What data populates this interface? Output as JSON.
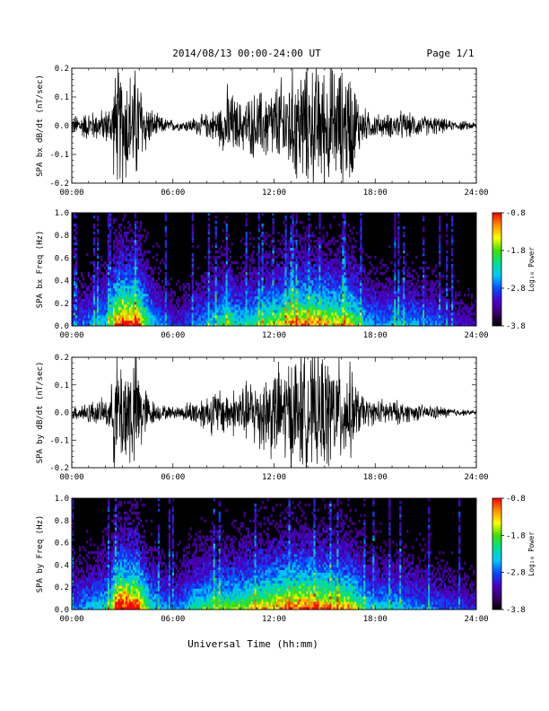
{
  "header": {
    "date_label": "2014/08/13  00:00-24:00 UT",
    "page_label": "Page 1/1"
  },
  "footer": {
    "xlabel": "Universal Time (hh:mm)"
  },
  "colors": {
    "trace": "#000000",
    "background": "#ffffff",
    "colormap": [
      "#000000",
      "#3a006a",
      "#4a00c8",
      "#0050ff",
      "#00c8ff",
      "#00e090",
      "#40e000",
      "#ffff00",
      "#ff9000",
      "#ff0000"
    ]
  },
  "chart_data": [
    {
      "type": "line",
      "panel": "bx-waveform",
      "ylabel": "SPA bx dB/dt (nT/sec)",
      "x_ticklabels": [
        "00:00",
        "06:00",
        "12:00",
        "18:00",
        "24:00"
      ],
      "y_ticklabels": [
        "0.2",
        "0.1",
        "0.0",
        "-0.1",
        "-0.2"
      ],
      "xlim": [
        0,
        24
      ],
      "ylim": [
        -0.2,
        0.2
      ],
      "x_unit": "hours UT",
      "envelope": {
        "x": [
          0,
          0.5,
          1.0,
          1.5,
          2.0,
          2.3,
          2.55,
          2.8,
          3.2,
          3.6,
          3.9,
          4.2,
          4.6,
          5.0,
          5.5,
          6.0,
          6.5,
          7.0,
          7.5,
          8.0,
          8.5,
          9.0,
          9.3,
          9.6,
          10.0,
          10.5,
          11.0,
          11.5,
          12.0,
          12.5,
          13.0,
          13.5,
          14.0,
          14.5,
          15.0,
          15.5,
          16.0,
          16.5,
          17.0,
          17.5,
          18.0,
          18.5,
          19.0,
          19.5,
          20.0,
          20.5,
          21.0,
          21.5,
          22.0,
          22.5,
          23.0,
          23.5,
          24.0
        ],
        "amplitude": [
          0.04,
          0.05,
          0.06,
          0.06,
          0.07,
          0.09,
          0.22,
          0.25,
          0.25,
          0.22,
          0.25,
          0.15,
          0.08,
          0.05,
          0.03,
          0.025,
          0.02,
          0.03,
          0.04,
          0.05,
          0.07,
          0.1,
          0.18,
          0.12,
          0.1,
          0.12,
          0.14,
          0.15,
          0.16,
          0.2,
          0.22,
          0.25,
          0.25,
          0.25,
          0.25,
          0.25,
          0.23,
          0.25,
          0.12,
          0.06,
          0.05,
          0.045,
          0.05,
          0.06,
          0.05,
          0.045,
          0.04,
          0.04,
          0.03,
          0.02,
          0.02,
          0.018,
          0.015
        ]
      }
    },
    {
      "type": "heatmap",
      "panel": "bx-spectrogram",
      "ylabel": "SPA bx Freq (Hz)",
      "colorbar_label": "Log₁₀ Power",
      "colorbar_ticklabels": [
        "-0.8",
        "-1.8",
        "-2.8",
        "-3.8"
      ],
      "colorbar_range": [
        -3.8,
        -0.8
      ],
      "x_ticklabels": [
        "00:00",
        "06:00",
        "12:00",
        "18:00",
        "24:00"
      ],
      "y_ticklabels": [
        "1.0",
        "0.8",
        "0.6",
        "0.4",
        "0.2",
        "0.0"
      ],
      "xlim": [
        0,
        24
      ],
      "ylim": [
        0,
        1.0
      ],
      "activity": {
        "x": [
          0,
          0.5,
          1.0,
          1.5,
          2.0,
          2.3,
          2.55,
          2.8,
          3.2,
          3.6,
          3.9,
          4.2,
          4.6,
          5.0,
          5.5,
          6.0,
          6.5,
          7.0,
          7.5,
          8.0,
          8.5,
          9.0,
          9.3,
          9.6,
          10.0,
          10.5,
          11.0,
          11.5,
          12.0,
          12.5,
          13.0,
          13.5,
          14.0,
          14.5,
          15.0,
          15.5,
          16.0,
          16.5,
          17.0,
          17.5,
          18.0,
          18.5,
          19.0,
          19.5,
          20.0,
          20.5,
          21.0,
          21.5,
          22.0,
          22.5,
          23.0,
          23.5,
          24.0
        ],
        "level": [
          0.25,
          0.3,
          0.35,
          0.4,
          0.45,
          0.5,
          0.85,
          0.95,
          1.0,
          0.9,
          0.95,
          0.7,
          0.5,
          0.4,
          0.3,
          0.25,
          0.22,
          0.3,
          0.35,
          0.4,
          0.45,
          0.55,
          0.6,
          0.5,
          0.45,
          0.5,
          0.55,
          0.6,
          0.62,
          0.7,
          0.75,
          0.8,
          0.8,
          0.78,
          0.75,
          0.72,
          0.7,
          0.7,
          0.55,
          0.4,
          0.38,
          0.36,
          0.38,
          0.4,
          0.38,
          0.36,
          0.34,
          0.32,
          0.28,
          0.24,
          0.22,
          0.2,
          0.18
        ]
      }
    },
    {
      "type": "line",
      "panel": "by-waveform",
      "ylabel": "SPA by dB/dt (nT/sec)",
      "x_ticklabels": [
        "00:00",
        "06:00",
        "12:00",
        "18:00",
        "24:00"
      ],
      "y_ticklabels": [
        "0.2",
        "0.1",
        "0.0",
        "-0.1",
        "-0.2"
      ],
      "xlim": [
        0,
        24
      ],
      "ylim": [
        -0.2,
        0.2
      ],
      "x_unit": "hours UT",
      "envelope": {
        "x": [
          0,
          0.5,
          1.0,
          1.5,
          2.0,
          2.3,
          2.55,
          2.8,
          3.2,
          3.6,
          3.9,
          4.2,
          4.6,
          5.0,
          5.5,
          6.0,
          6.5,
          7.0,
          7.5,
          8.0,
          8.5,
          9.0,
          9.3,
          9.6,
          10.0,
          10.5,
          11.0,
          11.5,
          12.0,
          12.5,
          13.0,
          13.5,
          14.0,
          14.5,
          15.0,
          15.5,
          16.0,
          16.5,
          17.0,
          17.5,
          18.0,
          18.5,
          19.0,
          19.5,
          20.0,
          20.5,
          21.0,
          21.5,
          22.0,
          22.5,
          23.0,
          23.5,
          24.0
        ],
        "amplitude": [
          0.03,
          0.04,
          0.05,
          0.05,
          0.06,
          0.08,
          0.25,
          0.25,
          0.25,
          0.25,
          0.25,
          0.14,
          0.07,
          0.04,
          0.03,
          0.025,
          0.03,
          0.05,
          0.06,
          0.08,
          0.1,
          0.1,
          0.09,
          0.1,
          0.12,
          0.13,
          0.16,
          0.18,
          0.2,
          0.21,
          0.25,
          0.25,
          0.25,
          0.25,
          0.25,
          0.24,
          0.22,
          0.2,
          0.1,
          0.06,
          0.05,
          0.06,
          0.05,
          0.05,
          0.04,
          0.035,
          0.03,
          0.03,
          0.025,
          0.02,
          0.015,
          0.012,
          0.01
        ]
      }
    },
    {
      "type": "heatmap",
      "panel": "by-spectrogram",
      "ylabel": "SPA by Freq (Hz)",
      "colorbar_label": "Log₁₀ Power",
      "colorbar_ticklabels": [
        "-0.8",
        "-1.8",
        "-2.8",
        "-3.8"
      ],
      "colorbar_range": [
        -3.8,
        -0.8
      ],
      "x_ticklabels": [
        "00:00",
        "06:00",
        "12:00",
        "18:00",
        "24:00"
      ],
      "y_ticklabels": [
        "1.0",
        "0.8",
        "0.6",
        "0.4",
        "0.2",
        "0.0"
      ],
      "xlim": [
        0,
        24
      ],
      "ylim": [
        0,
        1.0
      ],
      "activity": {
        "x": [
          0,
          0.5,
          1.0,
          1.5,
          2.0,
          2.3,
          2.55,
          2.8,
          3.2,
          3.6,
          3.9,
          4.2,
          4.6,
          5.0,
          5.5,
          6.0,
          6.5,
          7.0,
          7.5,
          8.0,
          8.5,
          9.0,
          9.3,
          9.6,
          10.0,
          10.5,
          11.0,
          11.5,
          12.0,
          12.5,
          13.0,
          13.5,
          14.0,
          14.5,
          15.0,
          15.5,
          16.0,
          16.5,
          17.0,
          17.5,
          18.0,
          18.5,
          19.0,
          19.5,
          20.0,
          20.5,
          21.0,
          21.5,
          22.0,
          22.5,
          23.0,
          23.5,
          24.0
        ],
        "level": [
          0.3,
          0.35,
          0.4,
          0.42,
          0.48,
          0.55,
          0.9,
          1.0,
          1.0,
          0.95,
          0.95,
          0.72,
          0.5,
          0.42,
          0.35,
          0.3,
          0.35,
          0.45,
          0.5,
          0.55,
          0.6,
          0.6,
          0.58,
          0.6,
          0.62,
          0.66,
          0.7,
          0.74,
          0.78,
          0.8,
          0.85,
          0.88,
          0.88,
          0.85,
          0.82,
          0.8,
          0.78,
          0.75,
          0.6,
          0.45,
          0.42,
          0.44,
          0.42,
          0.4,
          0.38,
          0.36,
          0.34,
          0.32,
          0.3,
          0.28,
          0.26,
          0.24,
          0.22
        ]
      }
    }
  ]
}
